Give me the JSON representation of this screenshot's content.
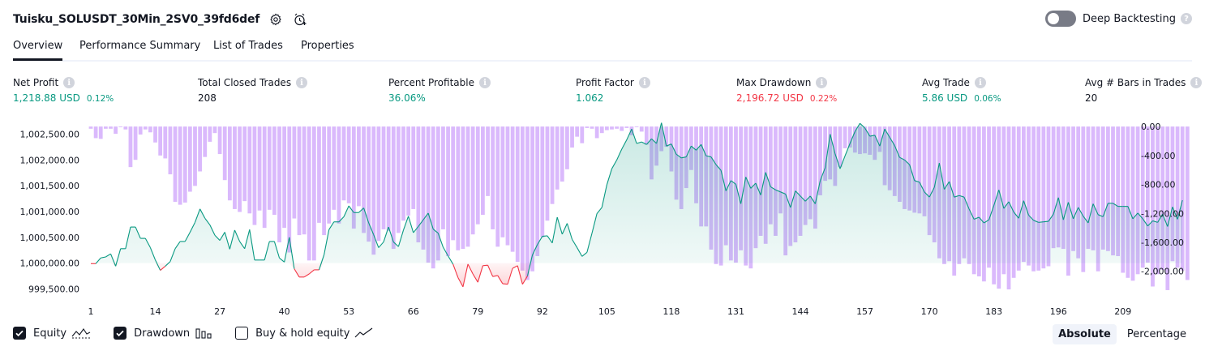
{
  "header": {
    "title": "Tuisku_SOLUSDT_30Min_2SV0_39fd6def",
    "settings_icon": "gear-icon",
    "alert_icon": "alarm-plus-icon"
  },
  "deep_backtesting": {
    "label": "Deep Backtesting",
    "enabled": false,
    "help": "?"
  },
  "tabs": [
    {
      "label": "Overview",
      "active": true
    },
    {
      "label": "Performance Summary"
    },
    {
      "label": "List of Trades"
    },
    {
      "label": "Properties"
    }
  ],
  "metrics": {
    "net_profit": {
      "label": "Net Profit",
      "value": "1,218.88 USD",
      "pct": "0.12%",
      "color": "#089981"
    },
    "total_closed_trades": {
      "label": "Total Closed Trades",
      "value": "208"
    },
    "percent_profitable": {
      "label": "Percent Profitable",
      "value": "36.06%",
      "color": "#089981"
    },
    "profit_factor": {
      "label": "Profit Factor",
      "value": "1.062",
      "color": "#089981"
    },
    "max_drawdown": {
      "label": "Max Drawdown",
      "value": "2,196.72 USD",
      "pct": "0.22%",
      "color": "#f23645"
    },
    "avg_trade": {
      "label": "Avg Trade",
      "value": "5.86 USD",
      "pct": "0.06%",
      "color": "#089981"
    },
    "avg_bars": {
      "label": "Avg # Bars in Trades",
      "value": "20"
    },
    "info_icon": "i"
  },
  "chart_data": {
    "type": "line",
    "x_ticks": [
      "1",
      "14",
      "27",
      "40",
      "53",
      "66",
      "79",
      "92",
      "105",
      "118",
      "131",
      "144",
      "157",
      "170",
      "183",
      "196",
      "209"
    ],
    "y_left_ticks": [
      "1,002,500.00",
      "1,002,000.00",
      "1,001,500.00",
      "1,001,000.00",
      "1,000,500.00",
      "1,000,000.00",
      "999,500.00"
    ],
    "y_right_ticks": [
      "0.00",
      "-400.00",
      "-800.00",
      "-1,200.00",
      "-1,600.00",
      "-2,000.00"
    ],
    "x_range": [
      1,
      211
    ],
    "y_left_range": [
      999350,
      1002760
    ],
    "y_right_range": [
      -2350,
      80
    ],
    "baseline": 1000000,
    "series": [
      {
        "name": "Equity",
        "color": "#089981",
        "negative_color": "#f23645",
        "values": [
          999990,
          999990,
          1000100,
          1000120,
          1000180,
          999940,
          1000280,
          1000280,
          1000700,
          1000700,
          1000480,
          1000480,
          1000300,
          1000060,
          999860,
          999940,
          1000030,
          1000280,
          1000420,
          1000420,
          1000600,
          1000790,
          1001050,
          1000870,
          1000740,
          1000540,
          1000440,
          1000600,
          1000270,
          1000640,
          1000420,
          1000280,
          1000650,
          1000060,
          1000060,
          1000060,
          1000420,
          1000420,
          1000100,
          1000020,
          1000500,
          999890,
          999730,
          999730,
          999790,
          999870,
          999870,
          1000160,
          1000650,
          1000800,
          1000800,
          1000900,
          1001110,
          1000980,
          1000980,
          1001070,
          1000780,
          1000550,
          1000300,
          1000410,
          1000700,
          1000410,
          1000320,
          1000640,
          1000910,
          1000590,
          1000710,
          1000840,
          1000970,
          1000660,
          1000580,
          1000310,
          1000140,
          999980,
          999720,
          999540,
          999980,
          999790,
          999630,
          999950,
          999960,
          999740,
          999760,
          999600,
          999590,
          999900,
          999950,
          999590,
          999750,
          1000160,
          1000360,
          1000520,
          1000530,
          1000390,
          1000890,
          1000560,
          1000770,
          1000460,
          1000300,
          1000130,
          1000210,
          1000580,
          1000960,
          1001080,
          1001520,
          1001830,
          1002000,
          1002210,
          1002390,
          1002600,
          1002320,
          1002350,
          1002300,
          1002410,
          1002320,
          1002720,
          1002270,
          1002310,
          1002110,
          1002040,
          1002060,
          1002270,
          1002190,
          1002300,
          1002080,
          1002060,
          1001910,
          1001800,
          1001400,
          1001600,
          1001530,
          1001150,
          1001670,
          1001450,
          1001550,
          1001320,
          1001760,
          1001480,
          1001420,
          1001380,
          1001340,
          1001080,
          1001400,
          1001300,
          1001200,
          1001300,
          1001150,
          1001600,
          1001850,
          1002500,
          1002120,
          1001830,
          1002080,
          1002320,
          1002550,
          1002710,
          1002620,
          1002460,
          1002480,
          1002270,
          1002600,
          1002440,
          1002280,
          1002050,
          1002000,
          1001910,
          1001600,
          1001570,
          1001380,
          1001280,
          1001470,
          1001940,
          1001430,
          1001580,
          1001280,
          1001310,
          1001280,
          1001050,
          1000850,
          1000890,
          1000780,
          1000840,
          1001120,
          1001420,
          1001060,
          1001190,
          1000990,
          1000870,
          1001210,
          1000930,
          1000830,
          1000790,
          1000800,
          1000810,
          1000950,
          1001270,
          1000840,
          1001180,
          1000860,
          1001080,
          1000910,
          1000780,
          1001150,
          1000940,
          1000900,
          1001160,
          1001160,
          1001100,
          1001100,
          1001100,
          1000860,
          1000970,
          1000860,
          1000720,
          1000820,
          1000790,
          1000950,
          1000710,
          1001090,
          1000850,
          1001220
        ]
      },
      {
        "name": "Drawdown",
        "color": "#d1a8fb",
        "values": [
          -30,
          -160,
          -170,
          -30,
          -30,
          -100,
          -10,
          -40,
          -560,
          -460,
          -110,
          -40,
          -80,
          -220,
          -400,
          -440,
          -660,
          -1040,
          -1080,
          -1050,
          -900,
          -820,
          -620,
          -420,
          -210,
          -90,
          -380,
          -740,
          -1020,
          -1140,
          -1180,
          -1030,
          -1200,
          -1360,
          -1160,
          -1400,
          -1150,
          -1220,
          -1600,
          -1400,
          -1740,
          -1270,
          -1500,
          -1490,
          -1850,
          -1850,
          -1330,
          -1500,
          -1340,
          -1150,
          -1340,
          -1020,
          -1060,
          -1410,
          -1100,
          -1470,
          -1590,
          -1770,
          -1580,
          -1420,
          -1440,
          -1690,
          -1470,
          -1300,
          -1230,
          -1140,
          -1600,
          -1700,
          -1880,
          -1960,
          -1850,
          -1420,
          -1790,
          -1570,
          -1710,
          -1690,
          -1660,
          -1490,
          -1350,
          -1220,
          -960,
          -1420,
          -1660,
          -1530,
          -1640,
          -1730,
          -1870,
          -1990,
          -2120,
          -2000,
          -1790,
          -1530,
          -1300,
          -1070,
          -870,
          -760,
          -590,
          -290,
          -140,
          -230,
          -20,
          -30,
          -160,
          -90,
          -50,
          -40,
          -30,
          -60,
          -20,
          -120,
          -10,
          -70,
          -250,
          -730,
          -540,
          -340,
          -280,
          -620,
          -1010,
          -1140,
          -850,
          -600,
          -1060,
          -1380,
          -1380,
          -1700,
          -1900,
          -1920,
          -1640,
          -1850,
          -1880,
          -1710,
          -1920,
          -1960,
          -1680,
          -1510,
          -1620,
          -1350,
          -1510,
          -1200,
          -1780,
          -1650,
          -1600,
          -1510,
          -1360,
          -1280,
          -1410,
          -950,
          -750,
          -730,
          -820,
          -560,
          -300,
          -290,
          -360,
          -380,
          -370,
          -390,
          -460,
          -350,
          -810,
          -880,
          -960,
          -1040,
          -1140,
          -1160,
          -1190,
          -1200,
          -1240,
          -1500,
          -1600,
          -1820,
          -1900,
          -1860,
          -2060,
          -1900,
          -1820,
          -1900,
          -2040,
          -2070,
          -2140,
          -1950,
          -2180,
          -2240,
          -2040,
          -2250,
          -2090,
          -1990,
          -1870,
          -1920,
          -2000,
          -1990,
          -1960,
          -1930,
          -1680,
          -1670,
          -1690,
          -2060,
          -1720,
          -1820,
          -2010,
          -1690,
          -1710,
          -2000,
          -1700,
          -1720,
          -1780,
          -1790,
          -2020,
          -2090,
          -2130,
          -2040,
          -1950,
          -1880,
          -2210,
          -2040,
          -1980,
          -2260,
          -1860,
          -1950,
          -1990,
          -2120
        ]
      }
    ]
  },
  "legend": [
    {
      "label": "Equity",
      "checked": true,
      "icon": "equity-line-icon"
    },
    {
      "label": "Drawdown",
      "checked": true,
      "icon": "drawdown-bars-icon"
    },
    {
      "label": "Buy & hold equity",
      "checked": false,
      "icon": "buy-hold-line-icon"
    }
  ],
  "view_modes": [
    {
      "label": "Absolute",
      "selected": true
    },
    {
      "label": "Percentage",
      "selected": false
    }
  ]
}
